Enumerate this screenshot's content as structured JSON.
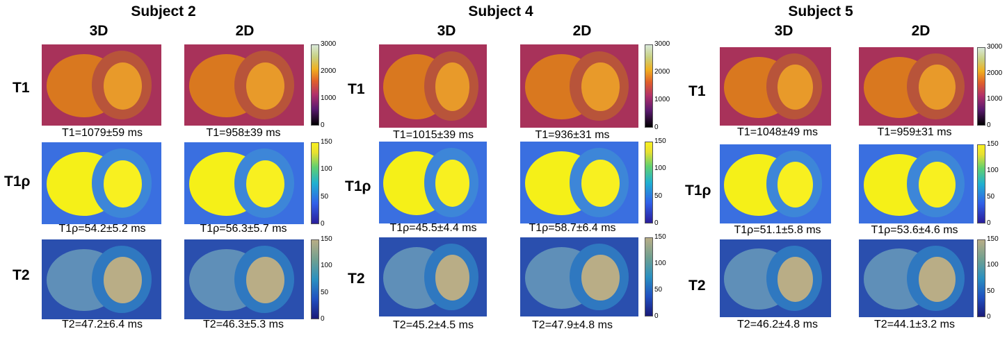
{
  "subjects": [
    {
      "title": "Subject 2",
      "cols": [
        "3D",
        "2D"
      ],
      "rows": [
        "T1",
        "T1ρ",
        "T2"
      ],
      "captions": [
        [
          "T1=1079±59 ms",
          "T1=958±39 ms"
        ],
        [
          "T1ρ=54.2±5.2 ms",
          "T1ρ=56.3±5.7 ms"
        ],
        [
          "T2=47.2±6.4 ms",
          "T2=46.3±5.3 ms"
        ]
      ]
    },
    {
      "title": "Subject 4",
      "cols": [
        "3D",
        "2D"
      ],
      "rows": [
        "T1",
        "T1ρ",
        "T2"
      ],
      "captions": [
        [
          "T1=1015±39 ms",
          "T1=936±31 ms"
        ],
        [
          "T1ρ=45.5±4.4 ms",
          "T1ρ=58.7±6.4 ms"
        ],
        [
          "T2=45.2±4.5 ms",
          "T2=47.9±4.8 ms"
        ]
      ]
    },
    {
      "title": "Subject 5",
      "cols": [
        "3D",
        "2D"
      ],
      "rows": [
        "T1",
        "T1ρ",
        "T2"
      ],
      "captions": [
        [
          "T1=1048±49 ms",
          "T1=959±31 ms"
        ],
        [
          "T1ρ=51.1±5.8 ms",
          "T1ρ=53.6±4.6 ms"
        ],
        [
          "T2=46.2±4.8 ms",
          "T2=44.1±3.2 ms"
        ]
      ]
    }
  ],
  "colorbars": {
    "t1": [
      "3000",
      "2000",
      "1000",
      "0"
    ],
    "t1rho": [
      "150",
      "100",
      "50",
      "0"
    ],
    "t2": [
      "150",
      "100",
      "50",
      "0"
    ]
  },
  "colors": {
    "t1_bg": "#a8325a",
    "t1_heart": "#d9781f",
    "t1_ring": "#b8543a",
    "t1_cavity": "#e89a2a",
    "t1rho_bg": "#3a6fe0",
    "t1rho_heart": "#f5f018",
    "t1rho_ring": "#3d86d8",
    "t1rho_cavity": "#f8f020",
    "t2_bg": "#2a4fae",
    "t2_heart": "#5f8fb8",
    "t2_ring": "#2f78c0",
    "t2_cavity": "#b9ad86"
  }
}
